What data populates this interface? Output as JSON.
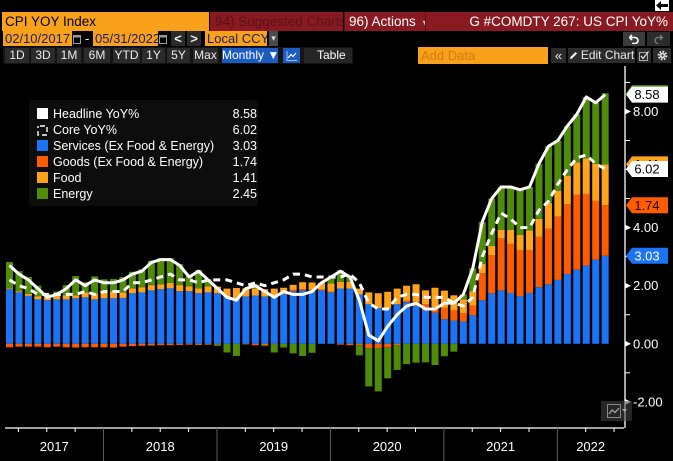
{
  "colors": {
    "orange": "#f9a11b",
    "header_red": "#8a1a21",
    "toggle_blue": "#1c5bc0"
  },
  "header": {
    "security_field": "CPI YOY Index",
    "suggested_charts": "94) Suggested Charts",
    "actions": "96) Actions",
    "actions_caret": "▾",
    "function_title": "G #COMDTY 267: US CPI YoY%"
  },
  "range_bar": {
    "start_date": "02/10/2017",
    "separator": "-",
    "end_date": "05/31/2022",
    "prev": "<",
    "next": ">",
    "currency": "Local CCY",
    "currency_caret": "▾"
  },
  "toolbar": {
    "periods": [
      "1D",
      "3D",
      "1M",
      "6M",
      "YTD",
      "1Y",
      "5Y",
      "Max"
    ],
    "frequency": "Monthly ▼",
    "table": "Table",
    "add_data_placeholder": "Add Data",
    "collapse": "«",
    "edit_chart": "Edit Chart"
  },
  "chart_data": {
    "type": "bar",
    "stacked": true,
    "title": "",
    "xlabel": "",
    "ylabel": "",
    "ylim": [
      -2.9,
      9.6
    ],
    "y_axis_side": "right",
    "y_minor_step": 1,
    "y_ticks": [
      {
        "v": 8,
        "label": "8.00"
      },
      {
        "v": 4,
        "label": "4.00"
      },
      {
        "v": 2,
        "label": "2.00"
      },
      {
        "v": 0,
        "label": "0.00"
      },
      {
        "v": -2,
        "label": "-2.00"
      }
    ],
    "x_tick_labels": [
      "2017",
      "2018",
      "2019",
      "2020",
      "2021",
      "2022"
    ],
    "grid": false,
    "legend_position": "top-left",
    "x": [
      "2017-02",
      "2017-03",
      "2017-04",
      "2017-05",
      "2017-06",
      "2017-07",
      "2017-08",
      "2017-09",
      "2017-10",
      "2017-11",
      "2017-12",
      "2018-01",
      "2018-02",
      "2018-03",
      "2018-04",
      "2018-05",
      "2018-06",
      "2018-07",
      "2018-08",
      "2018-09",
      "2018-10",
      "2018-11",
      "2018-12",
      "2019-01",
      "2019-02",
      "2019-03",
      "2019-04",
      "2019-05",
      "2019-06",
      "2019-07",
      "2019-08",
      "2019-09",
      "2019-10",
      "2019-11",
      "2019-12",
      "2020-01",
      "2020-02",
      "2020-03",
      "2020-04",
      "2020-05",
      "2020-06",
      "2020-07",
      "2020-08",
      "2020-09",
      "2020-10",
      "2020-11",
      "2020-12",
      "2021-01",
      "2021-02",
      "2021-03",
      "2021-04",
      "2021-05",
      "2021-06",
      "2021-07",
      "2021-08",
      "2021-09",
      "2021-10",
      "2021-11",
      "2021-12",
      "2022-01",
      "2022-02",
      "2022-03",
      "2022-04",
      "2022-05"
    ],
    "series": [
      {
        "key": "headline",
        "name": "Headline YoY%",
        "kind": "line",
        "style": "solid",
        "color": "#ffffff",
        "last": "8.58",
        "values": [
          2.7,
          2.4,
          2.2,
          1.9,
          1.6,
          1.7,
          1.9,
          2.2,
          2.0,
          2.2,
          2.1,
          2.1,
          2.2,
          2.4,
          2.5,
          2.8,
          2.9,
          2.9,
          2.7,
          2.3,
          2.5,
          2.2,
          1.9,
          1.6,
          1.5,
          1.9,
          2.0,
          1.8,
          1.6,
          1.8,
          1.7,
          1.7,
          1.8,
          2.1,
          2.3,
          2.5,
          2.3,
          1.5,
          0.3,
          0.1,
          0.6,
          1.0,
          1.3,
          1.4,
          1.2,
          1.2,
          1.4,
          1.4,
          1.7,
          2.6,
          4.2,
          5.0,
          5.4,
          5.4,
          5.3,
          5.4,
          6.2,
          6.8,
          7.0,
          7.5,
          7.9,
          8.5,
          8.3,
          8.58
        ]
      },
      {
        "key": "core",
        "name": "Core YoY%",
        "kind": "line",
        "style": "dashed",
        "color": "#ffffff",
        "last": "6.02",
        "values": [
          2.2,
          2.0,
          1.9,
          1.7,
          1.7,
          1.7,
          1.7,
          1.7,
          1.8,
          1.7,
          1.8,
          1.8,
          1.8,
          2.1,
          2.1,
          2.2,
          2.3,
          2.4,
          2.2,
          2.2,
          2.1,
          2.2,
          2.2,
          2.2,
          2.1,
          2.0,
          2.1,
          2.0,
          2.1,
          2.2,
          2.4,
          2.4,
          2.3,
          2.3,
          2.3,
          2.3,
          2.4,
          2.1,
          1.4,
          1.2,
          1.2,
          1.6,
          1.7,
          1.7,
          1.6,
          1.6,
          1.6,
          1.4,
          1.3,
          1.6,
          3.0,
          3.8,
          4.5,
          4.3,
          4.0,
          4.0,
          4.6,
          4.9,
          5.5,
          6.0,
          6.4,
          6.5,
          6.2,
          6.02
        ]
      },
      {
        "key": "services",
        "name": "Services (Ex Food & Energy)",
        "kind": "bar",
        "color": "#1a74f5",
        "last": "3.03",
        "values": [
          1.88,
          1.77,
          1.65,
          1.53,
          1.5,
          1.53,
          1.53,
          1.57,
          1.6,
          1.53,
          1.57,
          1.57,
          1.58,
          1.74,
          1.77,
          1.84,
          1.88,
          1.91,
          1.81,
          1.81,
          1.74,
          1.77,
          1.74,
          1.6,
          1.55,
          1.63,
          1.66,
          1.63,
          1.66,
          1.7,
          1.81,
          1.84,
          1.84,
          1.84,
          1.77,
          1.9,
          1.9,
          1.7,
          1.36,
          1.22,
          1.22,
          1.36,
          1.43,
          1.3,
          1.15,
          1.07,
          0.85,
          0.8,
          0.77,
          0.98,
          1.5,
          1.74,
          1.84,
          1.75,
          1.64,
          1.75,
          1.95,
          2.05,
          2.2,
          2.4,
          2.55,
          2.7,
          2.9,
          3.03
        ]
      },
      {
        "key": "goods",
        "name": "Goods (Ex Food & Energy)",
        "kind": "bar",
        "color": "#ff5c00",
        "last": "1.74",
        "values": [
          -0.12,
          -0.1,
          -0.1,
          -0.1,
          -0.12,
          -0.1,
          -0.12,
          -0.13,
          -0.12,
          -0.12,
          -0.12,
          -0.13,
          -0.1,
          -0.08,
          -0.07,
          -0.06,
          -0.05,
          -0.05,
          -0.04,
          -0.03,
          -0.04,
          -0.03,
          -0.02,
          0.0,
          0.02,
          -0.02,
          -0.05,
          -0.05,
          -0.02,
          0.03,
          0.05,
          0.04,
          0.03,
          0.02,
          0.03,
          -0.03,
          -0.05,
          -0.05,
          -0.15,
          -0.15,
          -0.12,
          -0.05,
          0.05,
          0.15,
          0.21,
          0.2,
          0.4,
          0.35,
          0.28,
          0.34,
          0.93,
          1.31,
          1.79,
          1.69,
          1.59,
          1.48,
          1.73,
          1.91,
          2.18,
          2.41,
          2.58,
          2.46,
          2.02,
          1.74
        ]
      },
      {
        "key": "food",
        "name": "Food",
        "kind": "bar",
        "color": "#ffa31a",
        "last": "1.41",
        "values": [
          0.03,
          0.04,
          0.07,
          0.11,
          0.1,
          0.14,
          0.14,
          0.1,
          0.17,
          0.21,
          0.2,
          0.23,
          0.19,
          0.17,
          0.18,
          0.18,
          0.17,
          0.19,
          0.21,
          0.17,
          0.17,
          0.21,
          0.23,
          0.3,
          0.35,
          0.27,
          0.24,
          0.25,
          0.24,
          0.2,
          0.17,
          0.24,
          0.24,
          0.24,
          0.28,
          0.23,
          0.23,
          0.2,
          0.41,
          0.52,
          0.57,
          0.54,
          0.52,
          0.6,
          0.48,
          0.66,
          0.58,
          0.52,
          0.48,
          0.49,
          0.32,
          0.32,
          0.29,
          0.48,
          0.52,
          0.67,
          0.62,
          0.89,
          0.89,
          0.98,
          1.11,
          1.22,
          1.28,
          1.41
        ]
      },
      {
        "key": "energy",
        "name": "Energy",
        "kind": "bar",
        "color": "#4e8c0a",
        "last": "2.45",
        "values": [
          0.91,
          0.69,
          0.58,
          0.36,
          0.12,
          0.13,
          0.35,
          0.66,
          0.35,
          0.58,
          0.45,
          0.43,
          0.53,
          0.57,
          0.62,
          0.84,
          0.9,
          0.85,
          0.72,
          0.35,
          0.63,
          0.25,
          -0.05,
          -0.3,
          -0.42,
          0.02,
          0.15,
          -0.03,
          -0.28,
          -0.13,
          -0.33,
          -0.42,
          -0.31,
          0.0,
          0.22,
          0.4,
          0.22,
          -0.35,
          -1.32,
          -1.49,
          -1.07,
          -0.85,
          -0.7,
          -0.65,
          -0.64,
          -0.73,
          -0.43,
          -0.27,
          0.17,
          0.79,
          1.45,
          1.63,
          1.48,
          1.48,
          1.55,
          1.5,
          1.9,
          1.95,
          1.73,
          1.71,
          1.66,
          2.12,
          2.1,
          2.45
        ]
      }
    ],
    "last_value_labels": [
      {
        "series": "energy",
        "text": "2.45",
        "level": 8.63,
        "bg": "#4e8c0a",
        "fg": "#ffffff"
      },
      {
        "series": "headline",
        "text": "8.58",
        "level": 8.58,
        "bg": "#ffffff",
        "fg": "#000000"
      },
      {
        "series": "food",
        "text": "1.41",
        "level": 6.18,
        "bg": "#ffa31a",
        "fg": "#000000"
      },
      {
        "series": "core",
        "text": "6.02",
        "level": 6.02,
        "bg": "#ffffff",
        "fg": "#000000"
      },
      {
        "series": "goods",
        "text": "1.74",
        "level": 4.77,
        "bg": "#ff5c00",
        "fg": "#1a0800"
      },
      {
        "series": "services",
        "text": "3.03",
        "level": 3.03,
        "bg": "#1a74f5",
        "fg": "#ffffff"
      }
    ]
  }
}
